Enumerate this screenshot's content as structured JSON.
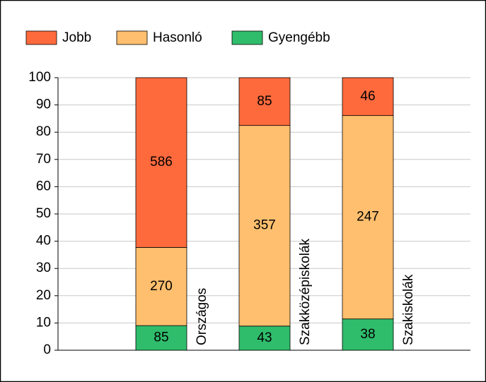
{
  "chart_data": {
    "type": "bar",
    "stack": "percent",
    "categories": [
      "Országos",
      "Szakközépiskolák",
      "Szakiskolák"
    ],
    "series": [
      {
        "name": "Jobb",
        "color": "#ff6a3d",
        "values": [
          586,
          85,
          46
        ]
      },
      {
        "name": "Hasonló",
        "color": "#ffbf6e",
        "values": [
          270,
          357,
          247
        ]
      },
      {
        "name": "Gyengébb",
        "color": "#2fbd6c",
        "values": [
          85,
          43,
          38
        ]
      }
    ],
    "ylim": [
      0,
      100
    ],
    "yticks": [
      0,
      10,
      20,
      30,
      40,
      50,
      60,
      70,
      80,
      90,
      100
    ],
    "grid": true
  }
}
